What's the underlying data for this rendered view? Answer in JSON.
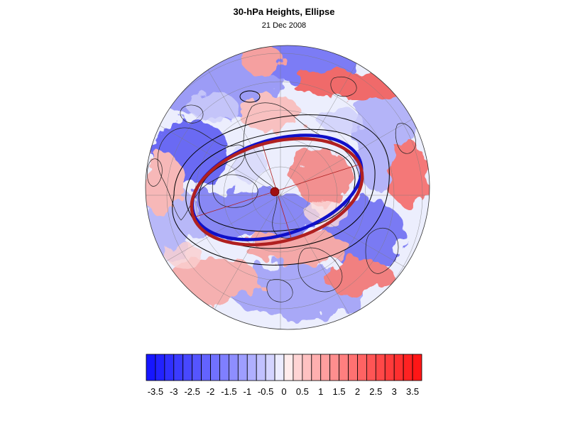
{
  "title": "30-hPa Heights, Ellipse",
  "subtitle": "21 Dec 2008",
  "colors": {
    "ellipse_blue": "#1010c8",
    "ellipse_red": "#b02020",
    "center_marker": "#a01010",
    "contour": "#000000"
  },
  "colorbar": {
    "min": -3.75,
    "max": 3.75,
    "step": 0.25,
    "low_color": "#1010ff",
    "mid_color": "#ffffff",
    "high_color": "#ff1010",
    "tick_labels": [
      "-3.5",
      "-3",
      "-2.5",
      "-2",
      "-1.5",
      "-1",
      "-0.5",
      "0",
      "0.5",
      "1",
      "1.5",
      "2",
      "2.5",
      "3",
      "3.5"
    ],
    "tick_values": [
      -3.5,
      -3,
      -2.5,
      -2,
      -1.5,
      -1,
      -0.5,
      0,
      0.5,
      1,
      1.5,
      2,
      2.5,
      3,
      3.5
    ]
  },
  "map": {
    "projection": "polar stereographic, northern hemisphere",
    "anomaly_blobs": [
      {
        "sign": "neg",
        "amp": 0.6
      },
      {
        "sign": "pos",
        "amp": 0.8
      },
      {
        "sign": "pos",
        "amp": 0.9
      },
      {
        "sign": "neg",
        "amp": 0.7
      },
      {
        "sign": "neg",
        "amp": 0.6
      },
      {
        "sign": "pos",
        "amp": 0.7
      }
    ]
  }
}
